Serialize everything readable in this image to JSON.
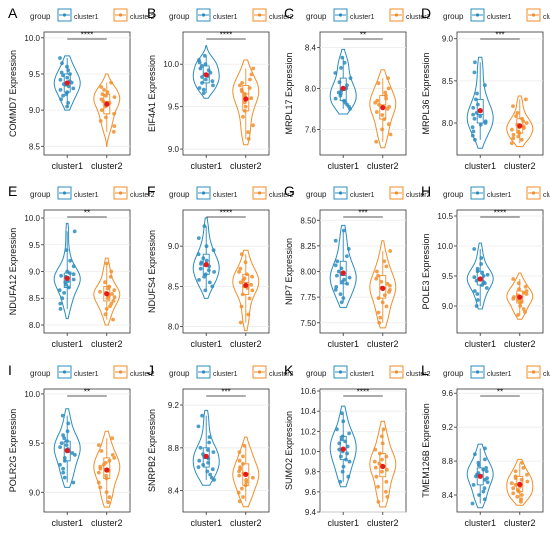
{
  "figure": {
    "colors": {
      "cluster1": "#2b8cbe",
      "cluster2": "#f28e2b",
      "mean": "#e41a1c",
      "grid": "#ececec",
      "axis": "#333333"
    },
    "legend_title": "group",
    "group_names": [
      "cluster1",
      "cluster2"
    ]
  },
  "chart_data": [
    {
      "type": "violin",
      "panel": "A",
      "ylabel": "COMMD7 Expression",
      "categories": [
        "cluster1",
        "cluster2"
      ],
      "yticks": [
        8.5,
        9.0,
        9.5,
        10.0
      ],
      "ylim": [
        8.38,
        10.08
      ],
      "significance": "****",
      "series": [
        {
          "name": "cluster1",
          "min": 9.0,
          "max": 9.75,
          "values": [
            9.72,
            9.65,
            9.6,
            9.55,
            9.52,
            9.5,
            9.48,
            9.45,
            9.42,
            9.4,
            9.38,
            9.36,
            9.35,
            9.33,
            9.3,
            9.28,
            9.25,
            9.22,
            9.2,
            9.15,
            9.1,
            9.05
          ]
        },
        {
          "name": "cluster2",
          "min": 8.5,
          "max": 9.5,
          "values": [
            9.38,
            9.32,
            9.28,
            9.25,
            9.22,
            9.2,
            9.18,
            9.15,
            9.12,
            9.1,
            9.08,
            9.05,
            9.0,
            8.95,
            8.9,
            8.85,
            8.78,
            8.7
          ]
        }
      ]
    },
    {
      "type": "violin",
      "panel": "B",
      "ylabel": "EIF4A1 Expression",
      "categories": [
        "cluster1",
        "cluster2"
      ],
      "yticks": [
        9.0,
        9.5,
        10.0
      ],
      "ylim": [
        8.93,
        10.38
      ],
      "significance": "****",
      "series": [
        {
          "name": "cluster1",
          "min": 9.6,
          "max": 10.22,
          "values": [
            10.1,
            10.05,
            10.02,
            10.0,
            9.98,
            9.95,
            9.93,
            9.9,
            9.88,
            9.86,
            9.85,
            9.82,
            9.8,
            9.78,
            9.75,
            9.72,
            9.7,
            9.66
          ]
        },
        {
          "name": "cluster2",
          "min": 9.05,
          "max": 10.05,
          "values": [
            9.95,
            9.88,
            9.82,
            9.78,
            9.75,
            9.72,
            9.7,
            9.68,
            9.65,
            9.62,
            9.6,
            9.55,
            9.5,
            9.45,
            9.38,
            9.28,
            9.2,
            9.12
          ]
        }
      ]
    },
    {
      "type": "violin",
      "panel": "C",
      "ylabel": "MRPL17 Expression",
      "categories": [
        "cluster1",
        "cluster2"
      ],
      "yticks": [
        7.6,
        8.0,
        8.4
      ],
      "ylim": [
        7.35,
        8.55
      ],
      "significance": "**",
      "series": [
        {
          "name": "cluster1",
          "min": 7.75,
          "max": 8.38,
          "values": [
            8.3,
            8.25,
            8.2,
            8.15,
            8.1,
            8.06,
            8.03,
            8.0,
            7.98,
            7.96,
            7.95,
            7.93,
            7.9,
            7.88,
            7.86,
            7.84,
            7.82,
            7.8
          ]
        },
        {
          "name": "cluster2",
          "min": 7.42,
          "max": 8.18,
          "values": [
            8.1,
            8.05,
            8.0,
            7.96,
            7.93,
            7.9,
            7.88,
            7.86,
            7.84,
            7.82,
            7.8,
            7.77,
            7.74,
            7.7,
            7.65,
            7.6,
            7.55,
            7.48
          ]
        }
      ]
    },
    {
      "type": "violin",
      "panel": "D",
      "ylabel": "MRPL36 Expression",
      "categories": [
        "cluster1",
        "cluster2"
      ],
      "yticks": [
        8.0,
        8.5,
        9.0
      ],
      "ylim": [
        7.62,
        9.08
      ],
      "significance": "***",
      "series": [
        {
          "name": "cluster1",
          "min": 7.7,
          "max": 8.78,
          "values": [
            8.72,
            8.6,
            8.45,
            8.35,
            8.28,
            8.22,
            8.18,
            8.15,
            8.12,
            8.1,
            8.08,
            8.05,
            8.02,
            8.0,
            7.98,
            7.95,
            7.9,
            7.85,
            7.8
          ]
        },
        {
          "name": "cluster2",
          "min": 7.72,
          "max": 8.32,
          "values": [
            8.28,
            8.2,
            8.12,
            8.08,
            8.05,
            8.02,
            8.0,
            7.98,
            7.96,
            7.95,
            7.94,
            7.92,
            7.9,
            7.88,
            7.86,
            7.84,
            7.82,
            7.8,
            7.76
          ]
        }
      ]
    },
    {
      "type": "violin",
      "panel": "E",
      "ylabel": "NDUFA12 Expression",
      "categories": [
        "cluster1",
        "cluster2"
      ],
      "yticks": [
        8.0,
        8.5,
        9.0,
        9.5,
        10.0
      ],
      "ylim": [
        7.85,
        10.15
      ],
      "significance": "**",
      "series": [
        {
          "name": "cluster1",
          "min": 8.12,
          "max": 9.9,
          "values": [
            9.75,
            9.4,
            9.2,
            9.1,
            9.0,
            8.97,
            8.95,
            8.92,
            8.9,
            8.88,
            8.85,
            8.82,
            8.8,
            8.75,
            8.7,
            8.65,
            8.6,
            8.5,
            8.4,
            8.3
          ]
        },
        {
          "name": "cluster2",
          "min": 8.0,
          "max": 9.25,
          "values": [
            9.15,
            9.0,
            8.9,
            8.8,
            8.72,
            8.68,
            8.65,
            8.62,
            8.6,
            8.58,
            8.55,
            8.52,
            8.5,
            8.45,
            8.4,
            8.35,
            8.3,
            8.2,
            8.1
          ]
        }
      ]
    },
    {
      "type": "violin",
      "panel": "F",
      "ylabel": "NDUFS4 Expression",
      "categories": [
        "cluster1",
        "cluster2"
      ],
      "yticks": [
        8.0,
        8.5,
        9.0
      ],
      "ylim": [
        7.92,
        9.45
      ],
      "significance": "****",
      "series": [
        {
          "name": "cluster1",
          "min": 8.35,
          "max": 9.35,
          "values": [
            9.25,
            9.1,
            9.0,
            8.95,
            8.9,
            8.85,
            8.82,
            8.8,
            8.78,
            8.75,
            8.72,
            8.7,
            8.68,
            8.65,
            8.62,
            8.58,
            8.55,
            8.5,
            8.45
          ]
        },
        {
          "name": "cluster2",
          "min": 7.95,
          "max": 8.95,
          "values": [
            8.9,
            8.8,
            8.72,
            8.68,
            8.65,
            8.62,
            8.6,
            8.58,
            8.55,
            8.52,
            8.5,
            8.48,
            8.45,
            8.4,
            8.35,
            8.25,
            8.15,
            8.05
          ]
        }
      ]
    },
    {
      "type": "violin",
      "panel": "G",
      "ylabel": "NIP7 Expression",
      "categories": [
        "cluster1",
        "cluster2"
      ],
      "yticks": [
        7.5,
        7.75,
        8.0,
        8.25,
        8.5
      ],
      "ylim": [
        7.4,
        8.6
      ],
      "significance": "***",
      "series": [
        {
          "name": "cluster1",
          "min": 7.65,
          "max": 8.45,
          "values": [
            8.4,
            8.3,
            8.22,
            8.15,
            8.1,
            8.06,
            8.03,
            8.0,
            7.98,
            7.96,
            7.94,
            7.92,
            7.9,
            7.88,
            7.85,
            7.82,
            7.78,
            7.74,
            7.7
          ]
        },
        {
          "name": "cluster2",
          "min": 7.45,
          "max": 8.3,
          "values": [
            8.2,
            8.1,
            8.05,
            8.0,
            7.96,
            7.93,
            7.9,
            7.88,
            7.86,
            7.84,
            7.82,
            7.8,
            7.77,
            7.74,
            7.7,
            7.66,
            7.6,
            7.55,
            7.5
          ]
        }
      ]
    },
    {
      "type": "violin",
      "panel": "H",
      "ylabel": "POLE3 Expression",
      "categories": [
        "cluster1",
        "cluster2"
      ],
      "yticks": [
        9.0,
        9.5,
        10.0,
        10.5
      ],
      "ylim": [
        8.55,
        10.6
      ],
      "significance": "****",
      "series": [
        {
          "name": "cluster1",
          "min": 8.95,
          "max": 10.05,
          "values": [
            9.95,
            9.8,
            9.7,
            9.62,
            9.58,
            9.55,
            9.52,
            9.5,
            9.48,
            9.45,
            9.42,
            9.4,
            9.38,
            9.35,
            9.3,
            9.25,
            9.2,
            9.1,
            9.0
          ]
        },
        {
          "name": "cluster2",
          "min": 8.78,
          "max": 9.55,
          "values": [
            9.45,
            9.38,
            9.32,
            9.28,
            9.25,
            9.22,
            9.2,
            9.18,
            9.15,
            9.12,
            9.1,
            9.08,
            9.05,
            9.0,
            8.95,
            8.9,
            8.85
          ]
        }
      ]
    },
    {
      "type": "violin",
      "panel": "I",
      "ylabel": "POLR2G Expression",
      "categories": [
        "cluster1",
        "cluster2"
      ],
      "yticks": [
        9.0,
        9.5,
        10.0
      ],
      "ylim": [
        8.8,
        10.05
      ],
      "significance": "**",
      "series": [
        {
          "name": "cluster1",
          "min": 9.05,
          "max": 9.85,
          "values": [
            9.78,
            9.7,
            9.62,
            9.58,
            9.55,
            9.52,
            9.5,
            9.48,
            9.46,
            9.44,
            9.42,
            9.4,
            9.38,
            9.35,
            9.32,
            9.28,
            9.24,
            9.2,
            9.15,
            9.1
          ]
        },
        {
          "name": "cluster2",
          "min": 8.85,
          "max": 9.62,
          "values": [
            9.55,
            9.48,
            9.42,
            9.38,
            9.35,
            9.32,
            9.3,
            9.28,
            9.26,
            9.24,
            9.22,
            9.2,
            9.17,
            9.14,
            9.1,
            9.05,
            9.0,
            8.95,
            8.9
          ]
        }
      ]
    },
    {
      "type": "violin",
      "panel": "J",
      "ylabel": "SNRPB2 Expression",
      "categories": [
        "cluster1",
        "cluster2"
      ],
      "yticks": [
        8.4,
        8.8,
        9.2
      ],
      "ylim": [
        8.2,
        9.35
      ],
      "significance": "***",
      "series": [
        {
          "name": "cluster1",
          "min": 8.45,
          "max": 9.15,
          "values": [
            9.1,
            9.0,
            8.9,
            8.85,
            8.8,
            8.78,
            8.76,
            8.74,
            8.72,
            8.7,
            8.68,
            8.66,
            8.64,
            8.62,
            8.6,
            8.58,
            8.55,
            8.52,
            8.5
          ]
        },
        {
          "name": "cluster2",
          "min": 8.25,
          "max": 8.9,
          "values": [
            8.82,
            8.76,
            8.72,
            8.68,
            8.65,
            8.62,
            8.6,
            8.58,
            8.56,
            8.54,
            8.52,
            8.5,
            8.48,
            8.45,
            8.42,
            8.38,
            8.34,
            8.3
          ]
        }
      ]
    },
    {
      "type": "violin",
      "panel": "K",
      "ylabel": "SUMO2 Expression",
      "categories": [
        "cluster1",
        "cluster2"
      ],
      "yticks": [
        9.4,
        9.6,
        9.8,
        10.0,
        10.2,
        10.4,
        10.6
      ],
      "ylim": [
        9.4,
        10.62
      ],
      "significance": "****",
      "series": [
        {
          "name": "cluster1",
          "min": 9.65,
          "max": 10.45,
          "values": [
            10.38,
            10.3,
            10.22,
            10.18,
            10.15,
            10.12,
            10.1,
            10.08,
            10.05,
            10.02,
            10.0,
            9.98,
            9.95,
            9.92,
            9.9,
            9.85,
            9.8,
            9.75,
            9.7
          ]
        },
        {
          "name": "cluster2",
          "min": 9.45,
          "max": 10.3,
          "values": [
            10.22,
            10.15,
            10.08,
            10.02,
            9.98,
            9.95,
            9.92,
            9.9,
            9.88,
            9.86,
            9.84,
            9.82,
            9.8,
            9.75,
            9.7,
            9.65,
            9.6,
            9.55,
            9.5
          ]
        }
      ]
    },
    {
      "type": "violin",
      "panel": "L",
      "ylabel": "TMEM126B Expression",
      "categories": [
        "cluster1",
        "cluster2"
      ],
      "yticks": [
        8.4,
        8.8,
        9.2,
        9.6
      ],
      "ylim": [
        8.2,
        9.65
      ],
      "significance": "**",
      "series": [
        {
          "name": "cluster1",
          "min": 8.25,
          "max": 9.0,
          "values": [
            8.95,
            8.88,
            8.82,
            8.78,
            8.75,
            8.72,
            8.7,
            8.68,
            8.66,
            8.64,
            8.62,
            8.6,
            8.58,
            8.55,
            8.52,
            8.48,
            8.44,
            8.4,
            8.35,
            8.3
          ]
        },
        {
          "name": "cluster2",
          "min": 8.28,
          "max": 8.82,
          "values": [
            8.78,
            8.72,
            8.68,
            8.64,
            8.62,
            8.6,
            8.58,
            8.56,
            8.54,
            8.52,
            8.5,
            8.48,
            8.46,
            8.44,
            8.42,
            8.4,
            8.38,
            8.35,
            8.32
          ]
        }
      ]
    }
  ]
}
